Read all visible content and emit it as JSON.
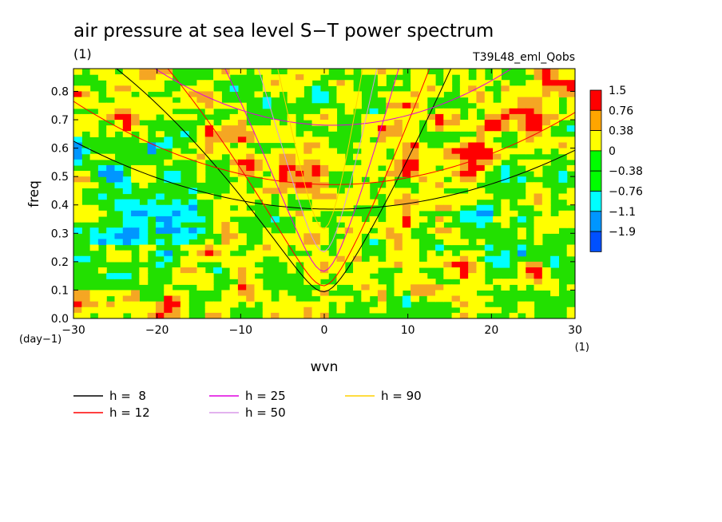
{
  "chart_data": {
    "type": "heatmap",
    "title": "air pressure at sea level S−T power spectrum",
    "subtitle_left": "(1)",
    "subtitle_right": "T39L48_eml_Qobs",
    "xlabel": "wvn",
    "ylabel": "freq",
    "x_unit": "(1)",
    "y_unit": "(day−1)",
    "xlim": [
      -30,
      30
    ],
    "ylim": [
      0,
      0.88
    ],
    "x_ticks": [
      -30,
      -20,
      -10,
      0,
      10,
      20,
      30
    ],
    "x_tick_labels": [
      "−30",
      "−20",
      "−10",
      "0",
      "10",
      "20",
      "30"
    ],
    "y_ticks": [
      0,
      0.1,
      0.2,
      0.3,
      0.4,
      0.5,
      0.6,
      0.7,
      0.8
    ],
    "y_tick_labels": [
      "0.0",
      "0.1",
      "0.2",
      "0.3",
      "0.4",
      "0.5",
      "0.6",
      "0.7",
      "0.8"
    ],
    "colorbar": {
      "levels": [
        "1.5",
        "0.76",
        "0.38",
        "0",
        "−0.38",
        "−0.76",
        "−1.1",
        "−1.9"
      ],
      "colors": [
        "#ff0000",
        "#ffa500",
        "#ffff00",
        "#00ff00",
        "#00ff00",
        "#00ffff",
        "#0096ff",
        "#0050ff"
      ]
    },
    "field_colors": {
      "green": "#22e000",
      "yellow": "#ffff00",
      "orange": "#f5a623",
      "red": "#ff0000",
      "cyan": "#00ffff",
      "blue": "#0096ff"
    },
    "dispersion_curves": [
      {
        "label": "h =  8",
        "h": 8,
        "color": "#000000"
      },
      {
        "label": "h = 12",
        "h": 12,
        "color": "#ff0000"
      },
      {
        "label": "h = 25",
        "h": 25,
        "color": "#e000e0"
      },
      {
        "label": "h = 50",
        "h": 50,
        "color": "#d898e8"
      },
      {
        "label": "h = 90",
        "h": 90,
        "color": "#ffd000"
      }
    ]
  }
}
